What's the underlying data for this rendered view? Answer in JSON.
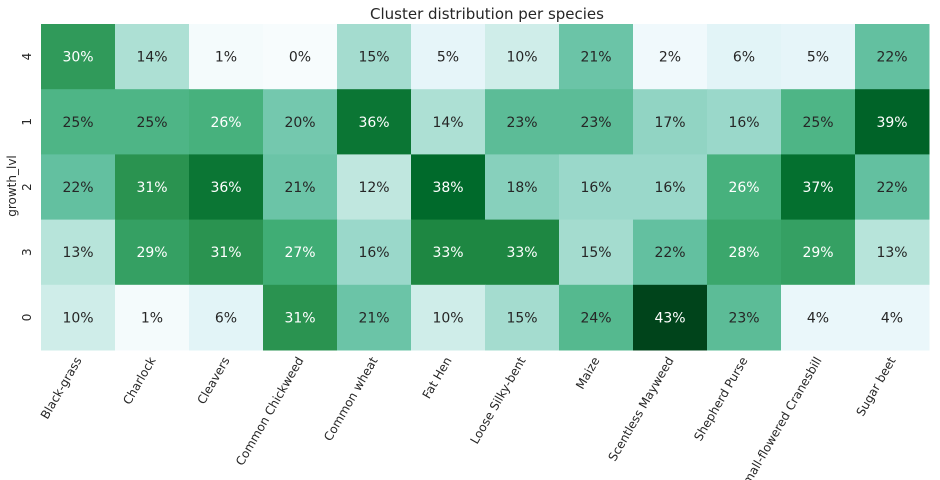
{
  "chart_data": {
    "type": "heatmap",
    "title": "Cluster distribution per species",
    "xlabel": "",
    "ylabel": "growth_lvl",
    "x_categories": [
      "Black-grass",
      "Charlock",
      "Cleavers",
      "Common Chickweed",
      "Common wheat",
      "Fat Hen",
      "Loose Silky-bent",
      "Maize",
      "Scentless Mayweed",
      "Shepherd Purse",
      "Small-flowered Cranesbill",
      "Sugar beet"
    ],
    "y_categories": [
      "4",
      "1",
      "2",
      "3",
      "0"
    ],
    "values": [
      [
        30,
        14,
        1,
        0,
        15,
        5,
        10,
        21,
        2,
        6,
        5,
        22
      ],
      [
        25,
        25,
        26,
        20,
        36,
        14,
        23,
        23,
        17,
        16,
        25,
        39
      ],
      [
        22,
        31,
        36,
        21,
        12,
        38,
        18,
        16,
        16,
        26,
        37,
        22
      ],
      [
        13,
        29,
        31,
        27,
        16,
        33,
        33,
        15,
        22,
        28,
        29,
        13
      ],
      [
        10,
        1,
        6,
        31,
        21,
        10,
        15,
        24,
        43,
        23,
        4,
        4
      ]
    ],
    "labels": [
      [
        "30%",
        "14%",
        "1%",
        "0%",
        "15%",
        "5%",
        "10%",
        "21%",
        "2%",
        "6%",
        "5%",
        "22%"
      ],
      [
        "25%",
        "25%",
        "26%",
        "20%",
        "36%",
        "14%",
        "23%",
        "23%",
        "17%",
        "16%",
        "25%",
        "39%"
      ],
      [
        "22%",
        "31%",
        "36%",
        "21%",
        "12%",
        "38%",
        "18%",
        "16%",
        "16%",
        "26%",
        "37%",
        "22%"
      ],
      [
        "13%",
        "29%",
        "31%",
        "27%",
        "16%",
        "33%",
        "33%",
        "15%",
        "22%",
        "28%",
        "29%",
        "13%"
      ],
      [
        "10%",
        "1%",
        "6%",
        "31%",
        "21%",
        "10%",
        "15%",
        "24%",
        "43%",
        "23%",
        "4%",
        "4%"
      ]
    ],
    "value_unit": "%",
    "vmin": 0,
    "vmax": 43,
    "colormap": "BuGn",
    "colorbar": false,
    "grid": false
  }
}
